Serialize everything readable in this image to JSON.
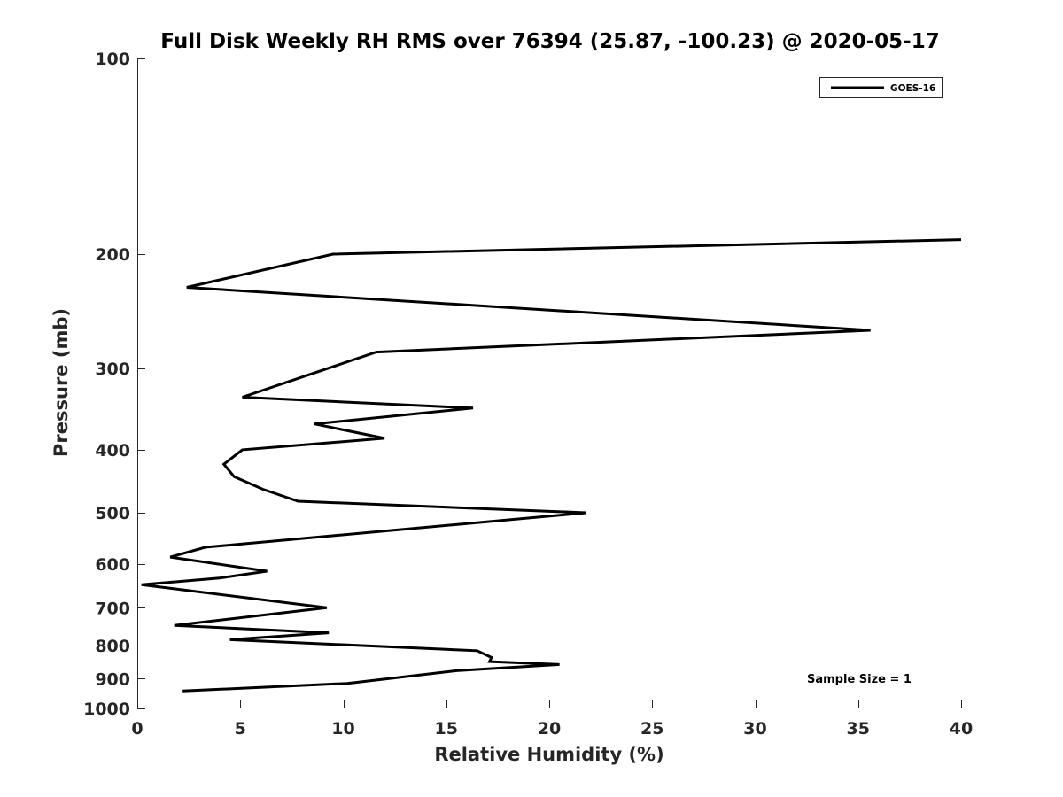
{
  "chart_data": {
    "type": "line",
    "title": "Full Disk Weekly RH RMS over 76394 (25.87, -100.23) @ 2020-05-17",
    "xlabel": "Relative Humidity (%)",
    "ylabel": "Pressure (mb)",
    "xlim": [
      0,
      40
    ],
    "ylim": [
      100,
      1000
    ],
    "yscale": "log",
    "y_reversed": true,
    "xticks": [
      0,
      5,
      10,
      15,
      20,
      25,
      30,
      35,
      40
    ],
    "xtick_labels": [
      "0",
      "5",
      "10",
      "15",
      "20",
      "25",
      "30",
      "35",
      "40"
    ],
    "yticks": [
      100,
      200,
      300,
      400,
      500,
      600,
      700,
      800,
      900,
      1000
    ],
    "ytick_labels": [
      "100",
      "200",
      "300",
      "400",
      "500",
      "600",
      "700",
      "800",
      "900",
      "1000"
    ],
    "grid": false,
    "legend": {
      "placement": "top-right"
    },
    "annotation": "Sample Size = 1",
    "series": [
      {
        "name": "GOES-16",
        "color": "#000000",
        "x": [
          40.0,
          9.5,
          2.4,
          35.6,
          11.6,
          5.1,
          16.3,
          8.6,
          12.0,
          5.1,
          4.2,
          4.7,
          6.1,
          7.8,
          21.8,
          3.3,
          1.6,
          6.3,
          4.0,
          0.2,
          9.2,
          1.8,
          9.3,
          4.5,
          16.5,
          17.2,
          17.1,
          20.5,
          15.5,
          10.2,
          2.2
        ],
        "y": [
          190,
          200,
          225,
          262,
          283,
          332,
          345,
          365,
          384,
          400,
          421,
          440,
          460,
          480,
          500,
          565,
          585,
          615,
          630,
          645,
          700,
          745,
          765,
          784,
          815,
          835,
          847,
          856,
          875,
          915,
          940
        ]
      }
    ]
  }
}
